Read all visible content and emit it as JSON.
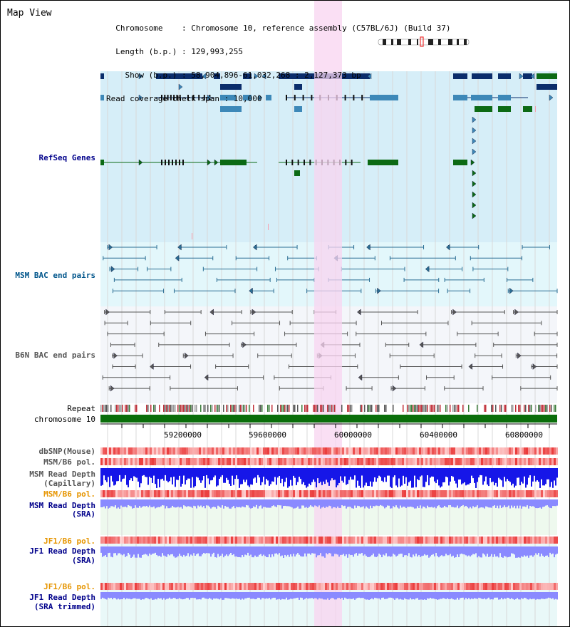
{
  "header": {
    "title": "Map View",
    "info_lines": [
      "  Chromosome    : Chromosome 10, reference assembly (C57BL/6J) (Build 37)",
      "  Length (b.p.) : 129,993,255",
      "    Show (b.p.) : 58,904,896-61,032,268 : 2,127,373 bp",
      "Read coverage check span : 10,000"
    ]
  },
  "tracks": {
    "refseq": "RefSeq Genes",
    "msm_bac": "MSM BAC end pairs",
    "b6n_bac": "B6N BAC end pairs",
    "repeat": "Repeat",
    "chromosome": "chromosome 10",
    "dbsnp": "dbSNP(Mouse)",
    "msm_b6_pol_1": "MSM/B6 pol.",
    "msm_read_depth_cap_1": "MSM Read Depth",
    "msm_read_depth_cap_2": "(Capillary)",
    "msm_b6_pol_2": "MSM/B6 pol.",
    "msm_read_depth_sra_1": "MSM Read Depth",
    "msm_read_depth_sra_2": "(SRA)",
    "jf1_b6_pol_1": "JF1/B6 pol.",
    "jf1_read_depth_sra_1": "JF1 Read Depth",
    "jf1_read_depth_sra_2": "(SRA)",
    "jf1_b6_pol_2": "JF1/B6 pol.",
    "jf1_read_depth_trim_1": "JF1 Read Depth",
    "jf1_read_depth_trim_2": "(SRA trimmed)"
  },
  "axis": {
    "ticks": [
      "59200000",
      "59600000",
      "60000000",
      "60400000",
      "60800000"
    ]
  },
  "colors": {
    "refseq_bg": "#d6eef8",
    "msm_bg": "#e3f7fb",
    "b6n_bg": "#f4f6fa",
    "highlight": "#f8d4f0",
    "navy": "#0b2d6b",
    "teal": "#3d88b8",
    "green": "#0c6a14",
    "chromosome": "#0a6e0a",
    "depth_dark": "#1616e8",
    "depth_light": "#8a8aff",
    "snp": "#f25050"
  }
}
